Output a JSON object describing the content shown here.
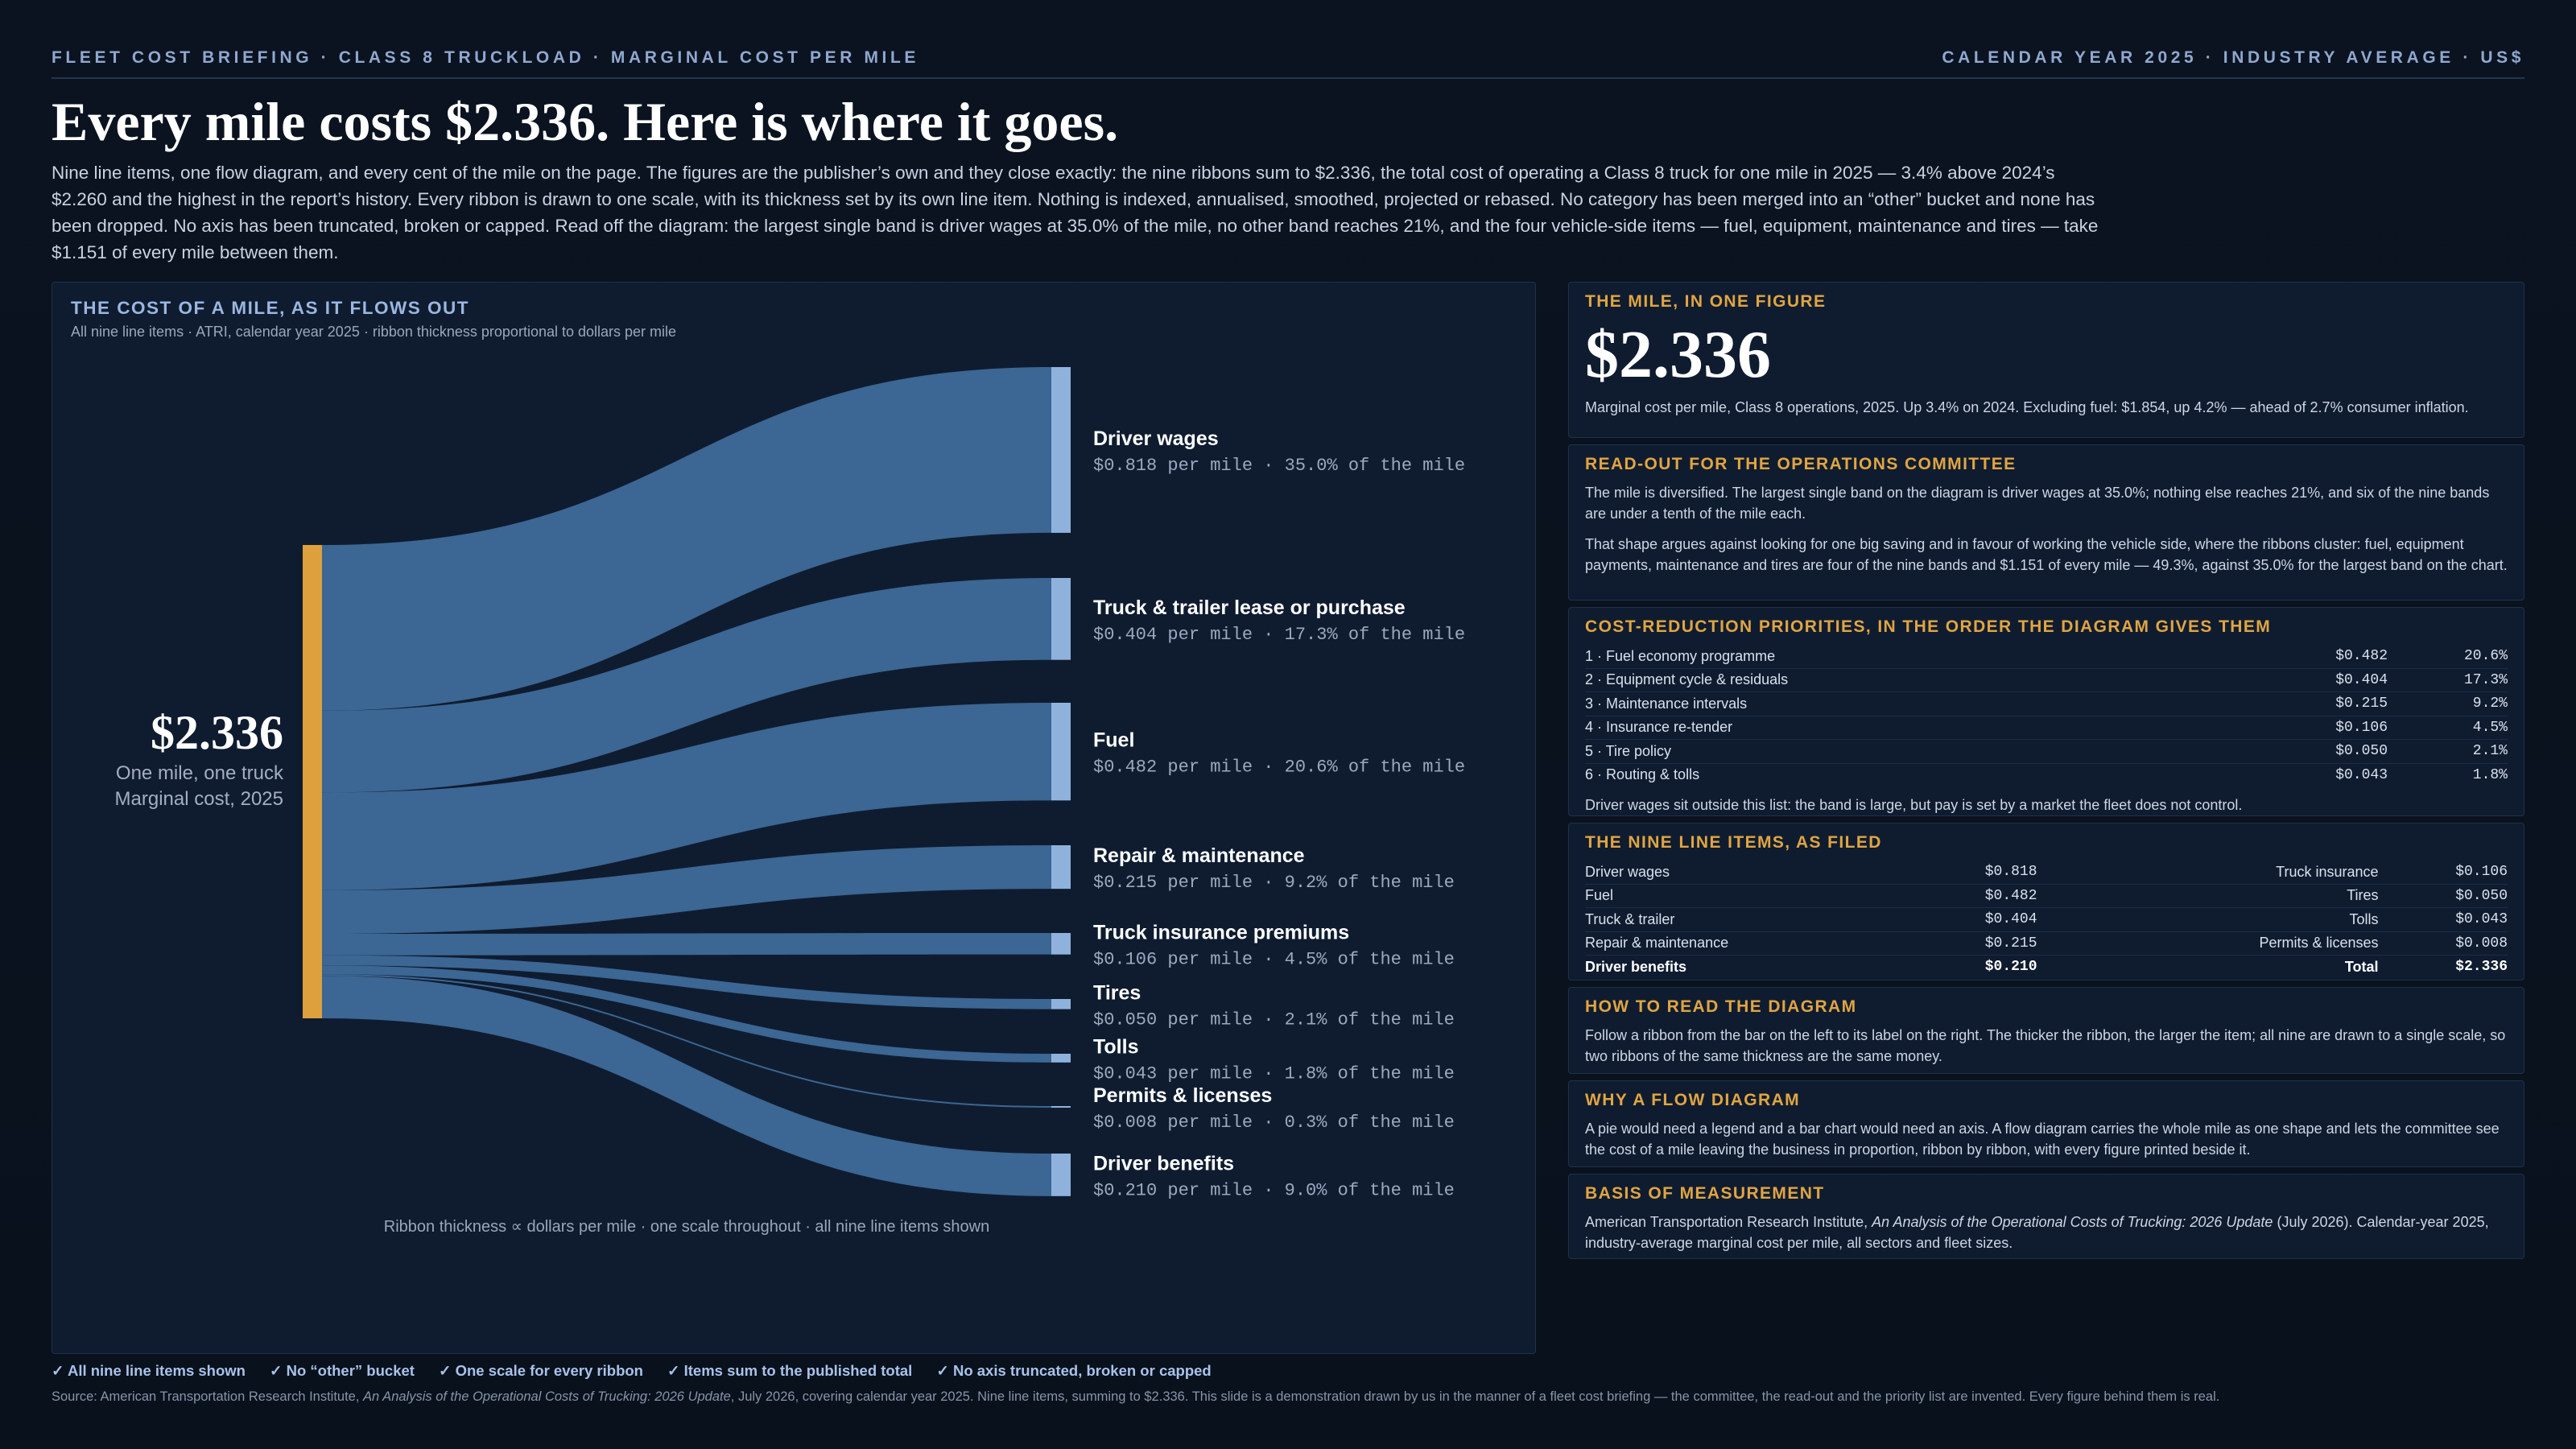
{
  "kicker_left": "FLEET COST BRIEFING · CLASS 8 TRUCKLOAD · MARGINAL COST PER MILE",
  "kicker_right": "CALENDAR YEAR 2025 · INDUSTRY AVERAGE · US$",
  "headline": "Every mile costs $2.336. Here is where it goes.",
  "lede": "Nine line items, one flow diagram, and every cent of the mile on the page. The figures are the publisher’s own and they close exactly: the nine ribbons sum to $2.336, the total cost of operating a Class 8 truck for one mile in 2025 — 3.4% above 2024’s $2.260 and the highest in the report’s history. Every ribbon is drawn to one scale, with its thickness set by its own line item. Nothing is indexed, annualised, smoothed, projected or rebased. No category has been merged into an “other” bucket and none has been dropped. No axis has been truncated, broken or capped. Read off the diagram: the largest single band is driver wages at 35.0% of the mile, no other band reaches 21%, and the four vehicle-side items — fuel, equipment, maintenance and tires — take $1.151 of every mile between them.",
  "chart_panel": {
    "title": "THE COST OF A MILE, AS IT FLOWS OUT",
    "subtitle": "All nine line items · ATRI, calendar year 2025 · ribbon thickness proportional to dollars per mile",
    "footnote": "Ribbon thickness ∝ dollars per mile · one scale throughout · all nine line items shown"
  },
  "chart_data": {
    "type": "sankey",
    "unit": "$ per mile",
    "source": {
      "total_label": "$2.336",
      "value": 2.336,
      "line1": "One mile, one truck",
      "line2": "Marginal cost, 2025"
    },
    "flows": [
      {
        "name": "Driver wages",
        "value": 0.818,
        "detail": "$0.818 per mile · 35.0% of the mile"
      },
      {
        "name": "Truck & trailer lease or purchase",
        "value": 0.404,
        "detail": "$0.404 per mile · 17.3% of the mile"
      },
      {
        "name": "Fuel",
        "value": 0.482,
        "detail": "$0.482 per mile · 20.6% of the mile"
      },
      {
        "name": "Repair & maintenance",
        "value": 0.215,
        "detail": "$0.215 per mile · 9.2% of the mile"
      },
      {
        "name": "Truck insurance premiums",
        "value": 0.106,
        "detail": "$0.106 per mile · 4.5% of the mile"
      },
      {
        "name": "Tires",
        "value": 0.05,
        "detail": "$0.050 per mile · 2.1% of the mile"
      },
      {
        "name": "Tolls",
        "value": 0.043,
        "detail": "$0.043 per mile · 1.8% of the mile"
      },
      {
        "name": "Permits & licenses",
        "value": 0.008,
        "detail": "$0.008 per mile · 0.3% of the mile"
      },
      {
        "name": "Driver benefits",
        "value": 0.21,
        "detail": "$0.210 per mile · 9.0% of the mile"
      }
    ],
    "colors": {
      "source_bar": "#dda03c",
      "ribbon": "#3f6a99",
      "target_bar": "#8fb2dd"
    }
  },
  "cards": {
    "mile": {
      "title": "THE MILE, IN ONE FIGURE",
      "figure": "$2.336",
      "text": "Marginal cost per mile, Class 8 operations, 2025. Up 3.4% on 2024. Excluding fuel: $1.854, up 4.2% — ahead of 2.7% consumer inflation."
    },
    "readout": {
      "title": "READ-OUT FOR THE OPERATIONS COMMITTEE",
      "p1": "The mile is diversified. The largest single band on the diagram is driver wages at 35.0%; nothing else reaches 21%, and six of the nine bands are under a tenth of the mile each.",
      "p2": "That shape argues against looking for one big saving and in favour of working the vehicle side, where the ribbons cluster: fuel, equipment payments, maintenance and tires are four of the nine bands and $1.151 of every mile — 49.3%, against 35.0% for the largest band on the chart."
    },
    "priorities": {
      "title": "COST-REDUCTION PRIORITIES, IN THE ORDER THE DIAGRAM GIVES THEM",
      "items": [
        {
          "label": "1 · Fuel economy programme",
          "value": "$0.482",
          "pct": "20.6%"
        },
        {
          "label": "2 · Equipment cycle & residuals",
          "value": "$0.404",
          "pct": "17.3%"
        },
        {
          "label": "3 · Maintenance intervals",
          "value": "$0.215",
          "pct": "9.2%"
        },
        {
          "label": "4 · Insurance re-tender",
          "value": "$0.106",
          "pct": "4.5%"
        },
        {
          "label": "5 · Tire policy",
          "value": "$0.050",
          "pct": "2.1%"
        },
        {
          "label": "6 · Routing & tolls",
          "value": "$0.043",
          "pct": "1.8%"
        }
      ],
      "note": "Driver wages sit outside this list: the band is large, but pay is set by a market the fleet does not control."
    },
    "lineitems": {
      "title": "THE NINE LINE ITEMS, AS FILED",
      "rows": [
        {
          "l": "Driver wages",
          "lv": "$0.818",
          "r": "Truck insurance",
          "rv": "$0.106"
        },
        {
          "l": "Fuel",
          "lv": "$0.482",
          "r": "Tires",
          "rv": "$0.050"
        },
        {
          "l": "Truck & trailer",
          "lv": "$0.404",
          "r": "Tolls",
          "rv": "$0.043"
        },
        {
          "l": "Repair & maintenance",
          "lv": "$0.215",
          "r": "Permits & licenses",
          "rv": "$0.008"
        },
        {
          "l": "Driver benefits",
          "lv": "$0.210",
          "r": "Total",
          "rv": "$2.336"
        }
      ]
    },
    "howto": {
      "title": "HOW TO READ THE DIAGRAM",
      "text": "Follow a ribbon from the bar on the left to its label on the right. The thicker the ribbon, the larger the item; all nine are drawn to a single scale, so two ribbons of the same thickness are the same money."
    },
    "why": {
      "title": "WHY A FLOW DIAGRAM",
      "text": "A pie would need a legend and a bar chart would need an axis. A flow diagram carries the whole mile as one shape and lets the committee see the cost of a mile leaving the business in proportion, ribbon by ribbon, with every figure printed beside it."
    },
    "basis": {
      "title": "BASIS OF MEASUREMENT",
      "text_pre": "American Transportation Research Institute, ",
      "text_italic": "An Analysis of the Operational Costs of Trucking: 2026 Update",
      "text_post": " (July 2026). Calendar-year 2025, industry-average marginal cost per mile, all sectors and fleet sizes."
    }
  },
  "footer": {
    "checks": [
      "✓ All nine line items shown",
      "✓ No “other” bucket",
      "✓ One scale for every ribbon",
      "✓ Items sum to the published total",
      "✓ No axis truncated, broken or capped"
    ],
    "source_pre": "Source: American Transportation Research Institute, ",
    "source_italic": "An Analysis of the Operational Costs of Trucking: 2026 Update",
    "source_post": ", July 2026, covering calendar year 2025. Nine line items, summing to $2.336. This slide is a demonstration drawn by us in the manner of a fleet cost briefing — the committee, the read-out and the priority list are invented. Every figure behind them is real."
  }
}
